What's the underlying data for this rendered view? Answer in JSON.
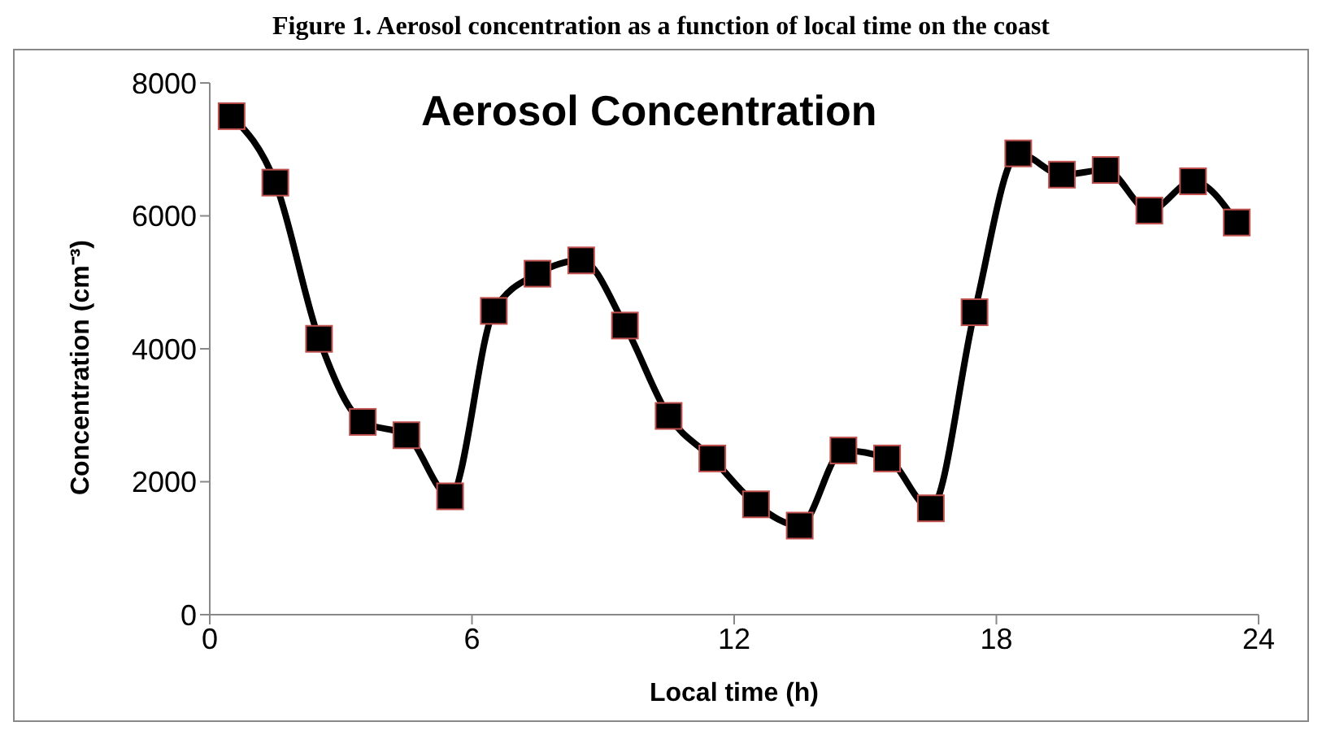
{
  "chart_data": {
    "type": "line",
    "title": "Figure 1. Aerosol concentration as a function of local time on the coast",
    "subtitle": "Aerosol Concentration",
    "xlabel": "Local time (h)",
    "ylabel": "Concentration (cm⁻³)",
    "x": [
      0.5,
      1.5,
      2.5,
      3.5,
      4.5,
      5.5,
      6.5,
      7.5,
      8.5,
      9.5,
      10.5,
      11.5,
      12.5,
      13.5,
      14.5,
      15.5,
      16.5,
      17.5,
      18.5,
      19.5,
      20.5,
      21.5,
      22.5,
      23.5
    ],
    "series": [
      {
        "color": "#000000",
        "values": [
          7500,
          6500,
          4150,
          2900,
          2700,
          1780,
          4570,
          5130,
          5330,
          4350,
          2990,
          2350,
          1660,
          1340,
          2470,
          2350,
          1600,
          4550,
          6940,
          6620,
          6690,
          6080,
          6520,
          5900
        ]
      }
    ],
    "xlim": [
      0,
      24
    ],
    "xticks": [
      0,
      6,
      12,
      18,
      24
    ],
    "ylim": [
      0,
      8000
    ],
    "yticks": [
      0,
      2000,
      4000,
      6000,
      8000
    ],
    "grid": false,
    "marker": "square",
    "line_style": "solid"
  }
}
